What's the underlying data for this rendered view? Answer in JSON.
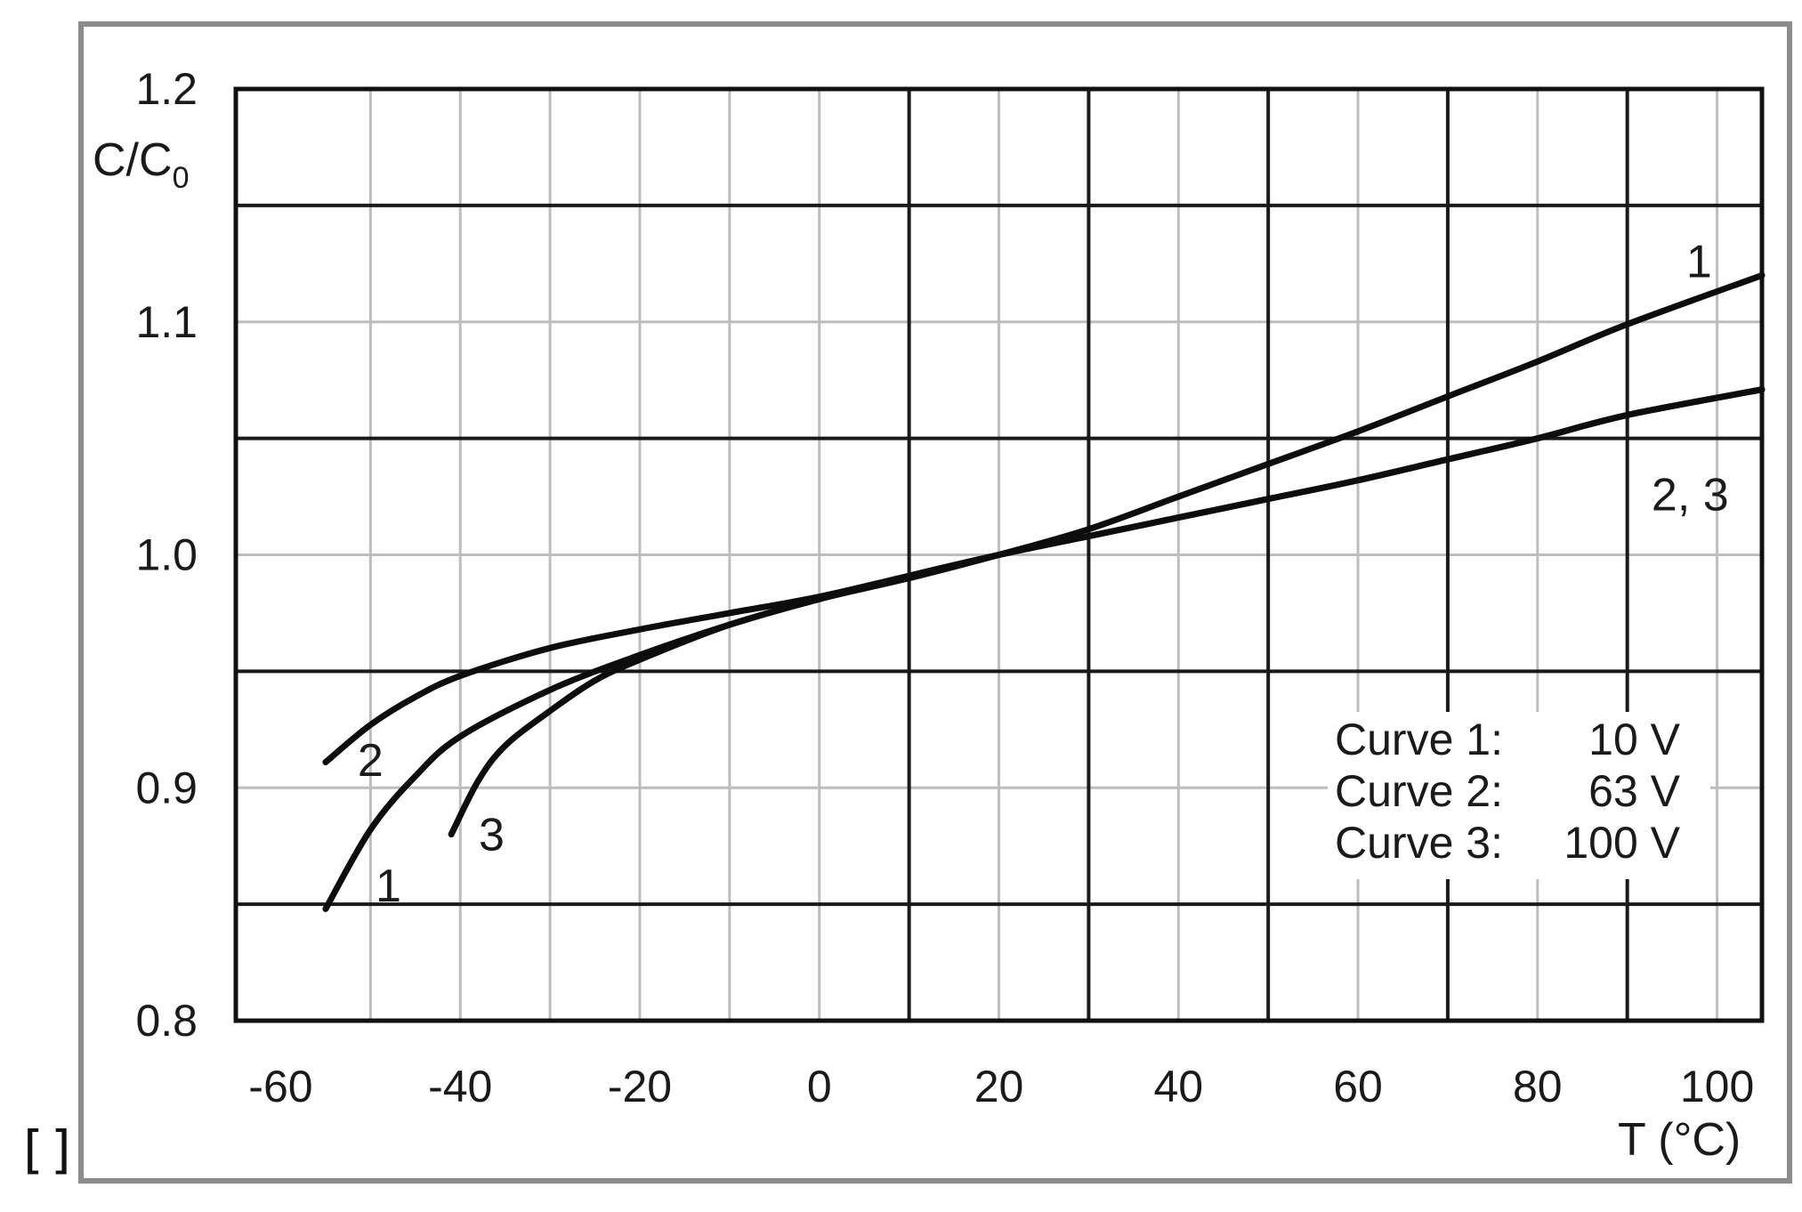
{
  "corner_text": "[]",
  "chart_data": {
    "type": "line",
    "title": "",
    "ylabel_main": "C/C",
    "ylabel_sub": "0",
    "xlabel": "T (°C)",
    "xlim": [
      -65,
      105
    ],
    "ylim": [
      0.8,
      1.2
    ],
    "x_major_ticks": [
      -50,
      -40,
      -30,
      -20,
      -10,
      0,
      10,
      20,
      30,
      40,
      50,
      60,
      70,
      80,
      90,
      100
    ],
    "x_tick_labels": [
      {
        "x": -60,
        "label": "-60"
      },
      {
        "x": -40,
        "label": "-40"
      },
      {
        "x": -20,
        "label": "-20"
      },
      {
        "x": 0,
        "label": "0"
      },
      {
        "x": 20,
        "label": "20"
      },
      {
        "x": 40,
        "label": "40"
      },
      {
        "x": 60,
        "label": "60"
      },
      {
        "x": 80,
        "label": "80"
      },
      {
        "x": 100,
        "label": "100"
      }
    ],
    "y_ticks": [
      {
        "y": 1.2,
        "label": "1.2"
      },
      {
        "y": 1.1,
        "label": "1.1"
      },
      {
        "y": 1.0,
        "label": "1.0"
      },
      {
        "y": 0.9,
        "label": "0.9"
      },
      {
        "y": 0.8,
        "label": "0.8"
      }
    ],
    "grid": true,
    "series": [
      {
        "name": "1",
        "points": [
          [
            -55,
            0.848
          ],
          [
            -50,
            0.882
          ],
          [
            -45,
            0.905
          ],
          [
            -40,
            0.922
          ],
          [
            -30,
            0.942
          ],
          [
            -20,
            0.957
          ],
          [
            -10,
            0.97
          ],
          [
            0,
            0.981
          ],
          [
            10,
            0.99
          ],
          [
            20,
            1.0
          ],
          [
            30,
            1.011
          ],
          [
            40,
            1.025
          ],
          [
            50,
            1.039
          ],
          [
            60,
            1.053
          ],
          [
            70,
            1.068
          ],
          [
            80,
            1.083
          ],
          [
            90,
            1.099
          ],
          [
            105,
            1.12
          ]
        ]
      },
      {
        "name": "2",
        "points": [
          [
            -55,
            0.911
          ],
          [
            -50,
            0.927
          ],
          [
            -45,
            0.939
          ],
          [
            -40,
            0.948
          ],
          [
            -30,
            0.96
          ],
          [
            -20,
            0.968
          ],
          [
            -10,
            0.975
          ],
          [
            0,
            0.982
          ],
          [
            10,
            0.991
          ],
          [
            20,
            1.0
          ],
          [
            30,
            1.008
          ],
          [
            40,
            1.016
          ],
          [
            50,
            1.024
          ],
          [
            60,
            1.032
          ],
          [
            70,
            1.041
          ],
          [
            80,
            1.05
          ],
          [
            90,
            1.06
          ],
          [
            105,
            1.071
          ]
        ]
      },
      {
        "name": "3",
        "points": [
          [
            -41,
            0.88
          ],
          [
            -38,
            0.903
          ],
          [
            -35,
            0.918
          ],
          [
            -30,
            0.933
          ],
          [
            -25,
            0.946
          ],
          [
            -20,
            0.955
          ],
          [
            -10,
            0.97
          ],
          [
            0,
            0.981
          ],
          [
            10,
            0.991
          ],
          [
            20,
            1.0
          ],
          [
            30,
            1.008
          ],
          [
            40,
            1.016
          ],
          [
            50,
            1.024
          ],
          [
            60,
            1.032
          ],
          [
            70,
            1.041
          ],
          [
            80,
            1.05
          ],
          [
            90,
            1.06
          ],
          [
            105,
            1.071
          ]
        ]
      }
    ],
    "curve_labels": [
      {
        "text": "1",
        "x": 98,
        "y": 1.126
      },
      {
        "text": "2, 3",
        "x": 97,
        "y": 1.026
      },
      {
        "text": "2",
        "x": -50,
        "y": 0.912
      },
      {
        "text": "1",
        "x": -48,
        "y": 0.858
      },
      {
        "text": "3",
        "x": -36.5,
        "y": 0.88
      }
    ],
    "legend": {
      "position": "bottom-right",
      "entries": [
        {
          "curve": "Curve 1:",
          "value": "10 V"
        },
        {
          "curve": "Curve 2:",
          "value": "63 V"
        },
        {
          "curve": "Curve 3:",
          "value": "100 V"
        }
      ]
    }
  }
}
